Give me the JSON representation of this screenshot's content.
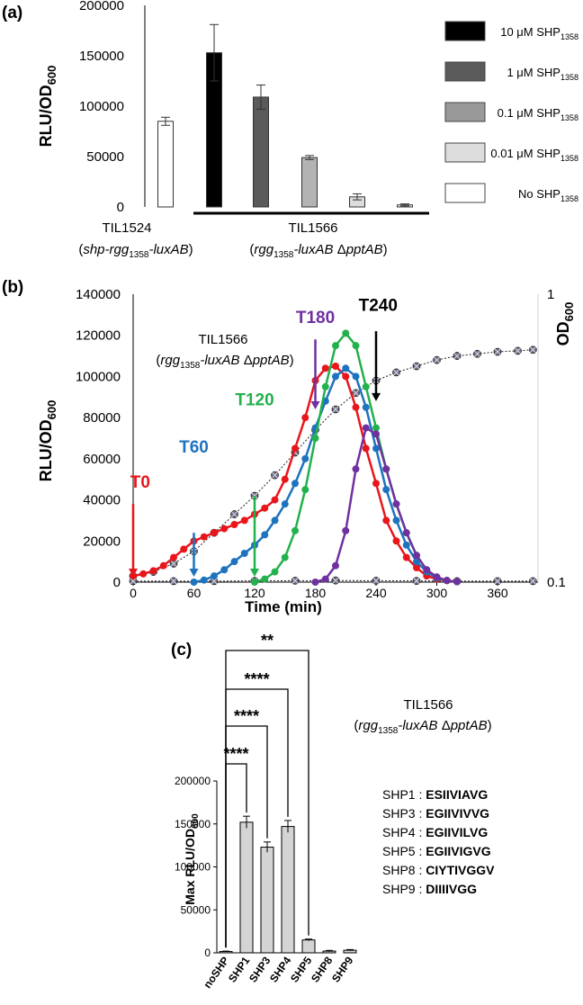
{
  "panels": {
    "a": {
      "label": "(a)"
    },
    "b": {
      "label": "(b)"
    },
    "c": {
      "label": "(c)"
    }
  },
  "chart_data": [
    {
      "panel": "a",
      "type": "bar",
      "ylabel": "RLU/OD",
      "ylabel_sub": "600",
      "ylim": [
        0,
        200000
      ],
      "yticks": [
        "0",
        "50000",
        "100000",
        "150000",
        "200000"
      ],
      "bars": [
        {
          "key": "no",
          "value": 85000,
          "err": 4000,
          "color": "#ffffff"
        },
        {
          "key": "c10",
          "value": 153000,
          "err": 28000,
          "color": "#000000"
        },
        {
          "key": "c1",
          "value": 109000,
          "err": 12000,
          "color": "#5a5a5a"
        },
        {
          "key": "c01",
          "value": 49000,
          "err": 2000,
          "color": "#b3b3b3"
        },
        {
          "key": "c001",
          "value": 10000,
          "err": 3000,
          "color": "#dcdcdc"
        },
        {
          "key": "no2",
          "value": 2000,
          "err": 1000,
          "color": "#ffffff"
        }
      ],
      "legend": [
        {
          "color": "#000000",
          "label": "10 μM SHP",
          "sub": "1358"
        },
        {
          "color": "#5a5a5a",
          "label": "1 μM SHP",
          "sub": "1358"
        },
        {
          "color": "#999999",
          "label": "0.1 μM SHP",
          "sub": "1358"
        },
        {
          "color": "#dcdcdc",
          "label": "0.01 μM SHP",
          "sub": "1358"
        },
        {
          "color": "#ffffff",
          "label": "No SHP",
          "sub": "1358"
        }
      ],
      "groups": {
        "g1": {
          "name": "TIL1524",
          "l1": "(",
          "it1": "shp-rgg",
          "sub": "1358",
          "it2": "-luxAB",
          "l2": ")"
        },
        "g2": {
          "name": "TIL1566",
          "l1": "(",
          "it1": "rgg",
          "sub": "1358",
          "it2": "-luxAB",
          "mid": " Δ",
          "it3": "pptAB",
          "l2": ")"
        }
      }
    },
    {
      "panel": "b",
      "type": "line",
      "xlabel": "Time (min)",
      "ylabel": "RLU/OD",
      "ylabel_sub": "600",
      "y2label": "OD",
      "y2label_sub": "600",
      "xlim": [
        0,
        400
      ],
      "ylim": [
        0,
        140000
      ],
      "xticks": [
        "0",
        "60",
        "120",
        "180",
        "240",
        "300",
        "360"
      ],
      "yticks": [
        "0",
        "20000",
        "40000",
        "60000",
        "80000",
        "100000",
        "120000",
        "140000"
      ],
      "y2ticks": [
        "0.1",
        "1"
      ],
      "strain": {
        "name": "TIL1566",
        "l1": "(",
        "it1": "rgg",
        "sub": "1358",
        "it2": "-luxAB",
        "mid": " Δ",
        "it3": "pptAB",
        "l2": ")"
      },
      "annotations": [
        {
          "label": "T0",
          "color": "#e8161b",
          "x": 0,
          "y": 38000,
          "tx": 7,
          "ty": 46000
        },
        {
          "label": "T60",
          "color": "#1e73be",
          "x": 60,
          "y": 24000,
          "tx": 60,
          "ty": 63000
        },
        {
          "label": "T120",
          "color": "#22b14c",
          "x": 120,
          "y": 42000,
          "tx": 120,
          "ty": 86000
        },
        {
          "label": "T180",
          "color": "#7030a0",
          "x": 180,
          "y": 104000,
          "tx": 180,
          "ty": 126000
        },
        {
          "label": "T240",
          "color": "#000000",
          "x": 240,
          "y": 108000,
          "tx": 242,
          "ty": 132000
        }
      ],
      "series": [
        {
          "name": "T0",
          "color": "#e8161b",
          "x": [
            0,
            10,
            20,
            30,
            40,
            50,
            60,
            70,
            80,
            90,
            100,
            110,
            120,
            130,
            140,
            150,
            160,
            170,
            180,
            190,
            200,
            210,
            220,
            230,
            240,
            250,
            260,
            270,
            280,
            290,
            300,
            310,
            320
          ],
          "y": [
            3000,
            4000,
            5500,
            8000,
            12000,
            16000,
            20000,
            22000,
            24000,
            26000,
            28000,
            30000,
            33000,
            36000,
            40000,
            50000,
            65000,
            80000,
            98000,
            104000,
            105000,
            100000,
            85000,
            65000,
            48000,
            30000,
            20000,
            12000,
            7000,
            3000,
            1500,
            700,
            300
          ]
        },
        {
          "name": "T60",
          "color": "#1e73be",
          "x": [
            60,
            70,
            80,
            90,
            100,
            110,
            120,
            130,
            140,
            150,
            160,
            170,
            180,
            190,
            200,
            210,
            220,
            230,
            240,
            250,
            260,
            270,
            280,
            290,
            300,
            310,
            320
          ],
          "y": [
            0,
            1000,
            3000,
            6000,
            10000,
            14000,
            18000,
            23000,
            30000,
            38000,
            48000,
            60000,
            75000,
            88000,
            100000,
            104000,
            100000,
            85000,
            65000,
            45000,
            30000,
            18000,
            10000,
            5000,
            2000,
            800,
            200
          ]
        },
        {
          "name": "T120",
          "color": "#22b14c",
          "x": [
            120,
            130,
            140,
            150,
            160,
            170,
            180,
            190,
            200,
            210,
            220,
            230,
            240,
            250,
            260,
            270,
            280,
            290,
            300,
            310,
            320
          ],
          "y": [
            0,
            1500,
            5000,
            12000,
            25000,
            45000,
            70000,
            95000,
            115000,
            121000,
            115000,
            95000,
            75000,
            55000,
            38000,
            24000,
            13000,
            6000,
            2500,
            800,
            200
          ]
        },
        {
          "name": "T180",
          "color": "#7030a0",
          "x": [
            180,
            190,
            200,
            210,
            220,
            230,
            240,
            250,
            260,
            270,
            280,
            290,
            300,
            310,
            320
          ],
          "y": [
            0,
            1500,
            8000,
            25000,
            55000,
            75000,
            72000,
            55000,
            38000,
            24000,
            13000,
            6000,
            2500,
            800,
            200
          ]
        },
        {
          "name": "OD600",
          "color": "#7f7f7f",
          "dotted": true,
          "x": [
            0,
            20,
            40,
            60,
            80,
            100,
            120,
            140,
            160,
            180,
            200,
            220,
            240,
            260,
            280,
            300,
            320,
            340,
            360,
            380,
            395
          ],
          "y": [
            3000,
            5000,
            9000,
            15000,
            24000,
            33000,
            42000,
            52000,
            63000,
            74000,
            84000,
            92000,
            98000,
            102000,
            105000,
            108000,
            110000,
            111000,
            112000,
            112500,
            113000
          ]
        },
        {
          "name": "baseline",
          "color": "#7f7f7f",
          "dotted": true,
          "x": [
            0,
            40,
            80,
            120,
            160,
            200,
            240,
            280,
            320,
            360,
            395
          ],
          "y": [
            500,
            500,
            500,
            600,
            700,
            800,
            700,
            600,
            500,
            500,
            500
          ]
        }
      ]
    },
    {
      "panel": "c",
      "type": "bar",
      "ylabel": "Max RLU/OD",
      "ylabel_sub": "600",
      "ylim": [
        0,
        200000
      ],
      "yticks": [
        "0",
        "50000",
        "100000",
        "150000",
        "200000"
      ],
      "categories": [
        "noSHP",
        "SHP1",
        "SHP3",
        "SHP4",
        "SHP5",
        "SHP8",
        "SHP9"
      ],
      "values": [
        1500,
        152000,
        123000,
        147000,
        15000,
        2000,
        3000
      ],
      "errors": [
        500,
        7000,
        6000,
        7000,
        1000,
        800,
        800
      ],
      "bar_color": "#d4d4d4",
      "strain": {
        "name": "TIL1566",
        "l1": "(",
        "it1": "rgg",
        "sub": "1358",
        "it2": "-luxAB",
        "mid": " Δ",
        "it3": "pptAB",
        "l2": ")"
      },
      "significance": [
        {
          "from": "noSHP",
          "to": "SHP1",
          "label": "****"
        },
        {
          "from": "noSHP",
          "to": "SHP3",
          "label": "****"
        },
        {
          "from": "noSHP",
          "to": "SHP4",
          "label": "****"
        },
        {
          "from": "noSHP",
          "to": "SHP5",
          "label": "**"
        }
      ],
      "sequences": [
        {
          "name": "SHP1 : ",
          "seq": "ESIIVIAVG"
        },
        {
          "name": "SHP3 : ",
          "seq": "EGIIVIVVG"
        },
        {
          "name": "SHP4 : ",
          "seq": "EGIIVILVG"
        },
        {
          "name": "SHP5 : ",
          "seq": "EGIIVIGVG"
        },
        {
          "name": "SHP8 : ",
          "seq": "CIYTIVGGV"
        },
        {
          "name": "SHP9 : ",
          "seq": "DIIIIVGG"
        }
      ]
    }
  ]
}
